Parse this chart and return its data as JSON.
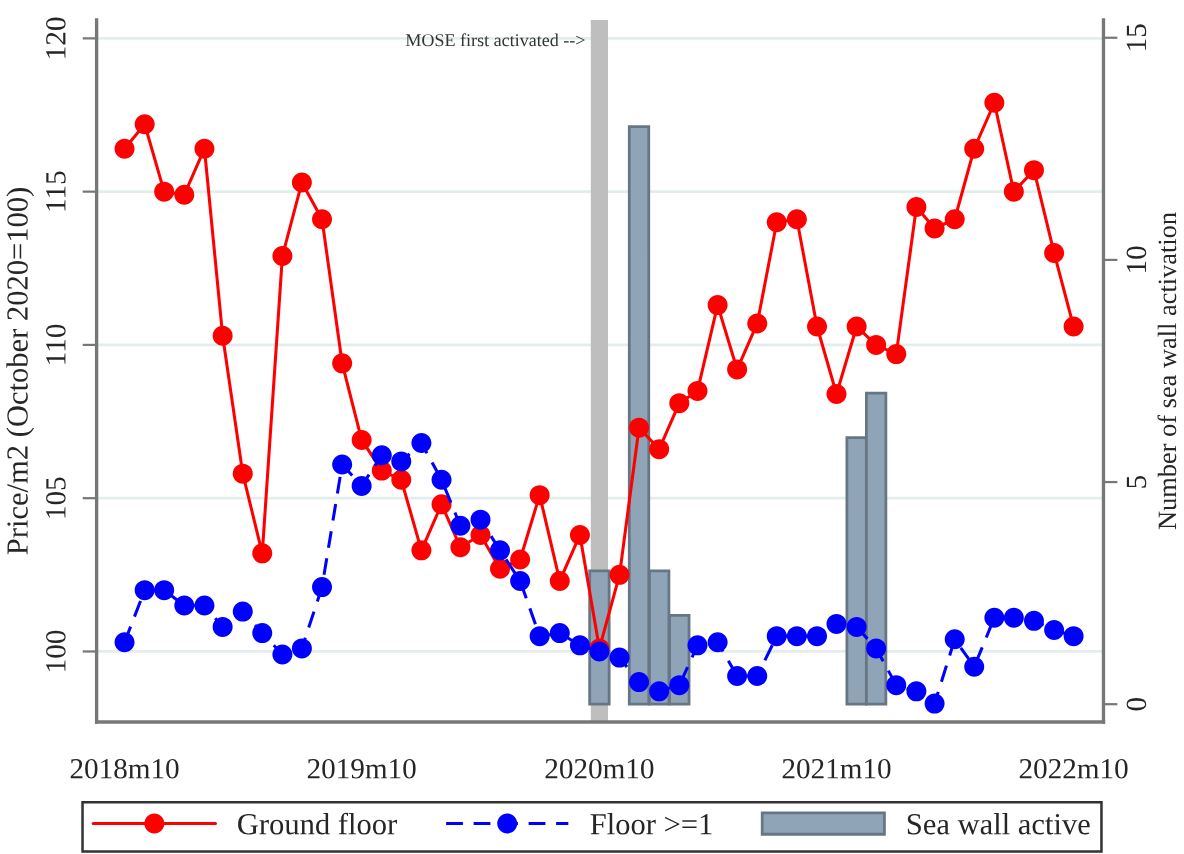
{
  "chart_data": {
    "type": "line",
    "ylabel": "Price/m2 (October 2020=100)",
    "y2label": "Number of sea wall activation",
    "x": [
      "2018-10",
      "2018-11",
      "2018-12",
      "2019-01",
      "2019-02",
      "2019-03",
      "2019-04",
      "2019-05",
      "2019-06",
      "2019-07",
      "2019-08",
      "2019-09",
      "2019-10",
      "2019-11",
      "2019-12",
      "2020-01",
      "2020-02",
      "2020-03",
      "2020-04",
      "2020-05",
      "2020-06",
      "2020-07",
      "2020-08",
      "2020-09",
      "2020-10",
      "2020-11",
      "2020-12",
      "2021-01",
      "2021-02",
      "2021-03",
      "2021-04",
      "2021-05",
      "2021-06",
      "2021-07",
      "2021-08",
      "2021-09",
      "2021-10",
      "2021-11",
      "2021-12",
      "2022-01",
      "2022-02",
      "2022-03",
      "2022-04",
      "2022-05",
      "2022-06",
      "2022-07",
      "2022-08",
      "2022-09",
      "2022-10"
    ],
    "series": [
      {
        "name": "Ground floor",
        "color": "#ff0000",
        "line_style": "solid",
        "values": [
          116.4,
          117.2,
          115.0,
          114.9,
          116.4,
          110.3,
          105.8,
          103.2,
          112.9,
          115.3,
          114.1,
          109.4,
          106.9,
          105.9,
          105.6,
          103.3,
          104.8,
          103.4,
          103.8,
          102.7,
          103.0,
          105.1,
          102.3,
          103.8,
          100.1,
          102.5,
          107.3,
          106.6,
          108.1,
          108.5,
          111.3,
          109.2,
          110.7,
          114.0,
          114.1,
          110.6,
          108.4,
          110.6,
          110.0,
          109.7,
          114.5,
          113.8,
          114.1,
          116.4,
          117.9,
          115.0,
          115.7,
          113.0,
          110.6
        ]
      },
      {
        "name": "Floor >=1",
        "color": "#0000ff",
        "line_style": "dashed",
        "values": [
          100.3,
          102.0,
          102.0,
          101.5,
          101.5,
          100.8,
          101.3,
          100.6,
          99.9,
          100.1,
          102.1,
          106.1,
          105.4,
          106.4,
          106.2,
          106.8,
          105.6,
          104.1,
          104.3,
          103.3,
          102.3,
          100.5,
          100.6,
          100.2,
          100.0,
          99.8,
          99.0,
          98.7,
          98.9,
          100.2,
          100.3,
          99.2,
          99.2,
          100.5,
          100.5,
          100.5,
          100.9,
          100.8,
          100.1,
          98.9,
          98.7,
          98.3,
          100.4,
          99.5,
          101.1,
          101.1,
          101.0,
          100.7,
          100.5
        ]
      },
      {
        "name": "Sea wall active",
        "type": "bar",
        "axis": "y2",
        "color": "#8fa4b7",
        "x": [
          "2020-10",
          "2020-12",
          "2021-01",
          "2021-02",
          "2021-11",
          "2021-12"
        ],
        "values": [
          3,
          13,
          3,
          2,
          6,
          7
        ]
      }
    ],
    "xlim": [
      "2018-08-19",
      "2022-11-16"
    ],
    "xticks": [
      {
        "value": "2018-10",
        "label": "2018m10"
      },
      {
        "value": "2019-10",
        "label": "2019m10"
      },
      {
        "value": "2020-10",
        "label": "2020m10"
      },
      {
        "value": "2021-10",
        "label": "2021m10"
      },
      {
        "value": "2022-10",
        "label": "2022m10"
      }
    ],
    "ylim": [
      97.7,
      120.6
    ],
    "yticks": [
      100,
      105,
      110,
      115,
      120
    ],
    "y2lim": [
      -0.4,
      15.4
    ],
    "y2ticks": [
      0,
      5,
      10,
      15
    ],
    "ref_lines": [
      {
        "axis": "x",
        "value": "2020-10",
        "label": "MOSE first activated -->",
        "color": "#bebebe"
      }
    ],
    "grid": "y",
    "legend": "bottom",
    "marker": "circle"
  }
}
